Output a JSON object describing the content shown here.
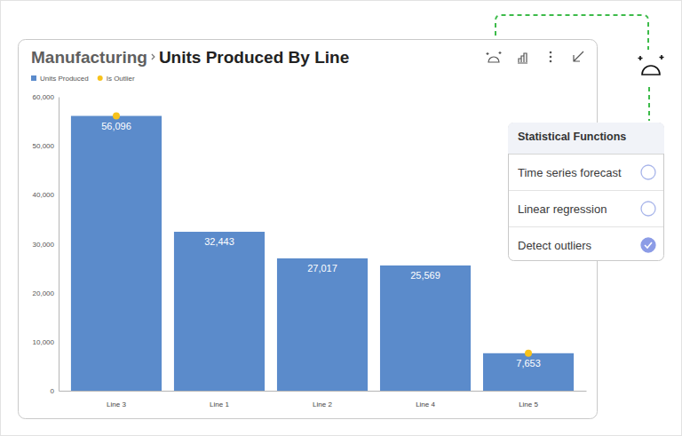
{
  "chart_data": {
    "type": "bar",
    "breadcrumb": "Manufacturing",
    "title": "Units Produced By Line",
    "categories": [
      "Line 3",
      "Line 1",
      "Line 2",
      "Line 4",
      "Line 5"
    ],
    "series": [
      {
        "name": "Units Produced",
        "type": "bar",
        "color": "#5b8bcb",
        "values": [
          56096,
          32443,
          27017,
          25569,
          7653
        ],
        "value_labels": [
          "56,096",
          "32,443",
          "27,017",
          "25,569",
          "7,653"
        ]
      },
      {
        "name": "Is Outlier",
        "type": "scatter",
        "marker": "circle",
        "color": "#f7c21b",
        "values": [
          56096,
          null,
          null,
          null,
          7653
        ]
      }
    ],
    "ylim": [
      0,
      60000
    ],
    "yticks": [
      0,
      {
        "value": 10000,
        "label": "10,000"
      },
      {
        "value": 20000,
        "label": "20,000"
      },
      {
        "value": 30000,
        "label": "30,000"
      },
      {
        "value": 40000,
        "label": "40,000"
      },
      {
        "value": 50000,
        "label": "50,000"
      },
      {
        "value": 60000,
        "label": "60,000"
      }
    ],
    "grid": false,
    "legend": "top-left",
    "data_labels": true
  },
  "panel": {
    "title": "Statistical Functions",
    "options": [
      {
        "label": "Time series forecast",
        "checked": false
      },
      {
        "label": "Linear regression",
        "checked": false
      },
      {
        "label": "Detect outliers",
        "checked": true
      }
    ]
  }
}
